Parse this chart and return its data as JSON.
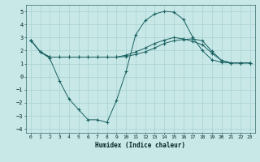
{
  "xlabel": "Humidex (Indice chaleur)",
  "bg_color": "#c8e8e8",
  "grid_color": "#a8d0d0",
  "line_color": "#1a6060",
  "xlim": [
    -0.5,
    23.5
  ],
  "ylim": [
    -4.3,
    5.5
  ],
  "xticks": [
    0,
    1,
    2,
    3,
    4,
    5,
    6,
    7,
    8,
    9,
    10,
    11,
    12,
    13,
    14,
    15,
    16,
    17,
    18,
    19,
    20,
    21,
    22,
    23
  ],
  "yticks": [
    -4,
    -3,
    -2,
    -1,
    0,
    1,
    2,
    3,
    4,
    5
  ],
  "line1_x": [
    0,
    1,
    2,
    3,
    4,
    5,
    6,
    7,
    8,
    9,
    10,
    11,
    12,
    13,
    14,
    15,
    16,
    17,
    18,
    19,
    20,
    21,
    22,
    23
  ],
  "line1_y": [
    2.8,
    1.9,
    1.5,
    1.5,
    1.5,
    1.5,
    1.5,
    1.5,
    1.5,
    1.5,
    1.55,
    1.7,
    1.9,
    2.2,
    2.55,
    2.75,
    2.85,
    2.9,
    2.75,
    1.95,
    1.25,
    1.05,
    1.05,
    1.05
  ],
  "line2_x": [
    0,
    1,
    2,
    3,
    4,
    5,
    6,
    7,
    8,
    9,
    10,
    11,
    12,
    13,
    14,
    15,
    16,
    17,
    18,
    19,
    20,
    21,
    22,
    23
  ],
  "line2_y": [
    2.8,
    1.9,
    1.5,
    1.5,
    1.5,
    1.5,
    1.5,
    1.5,
    1.5,
    1.5,
    1.65,
    1.9,
    2.2,
    2.55,
    2.8,
    3.0,
    2.9,
    2.7,
    2.45,
    1.8,
    1.25,
    1.05,
    1.05,
    1.05
  ],
  "line3_x": [
    0,
    1,
    2,
    3,
    4,
    5,
    6,
    7,
    8,
    9,
    10,
    11,
    12,
    13,
    14,
    15,
    16,
    17,
    18,
    19,
    20,
    21,
    22,
    23
  ],
  "line3_y": [
    2.8,
    1.9,
    1.4,
    -0.3,
    -1.7,
    -2.5,
    -3.3,
    -3.3,
    -3.5,
    -1.8,
    0.4,
    3.2,
    4.3,
    4.8,
    5.0,
    4.95,
    4.4,
    3.0,
    2.0,
    1.3,
    1.1,
    1.05,
    1.05,
    1.05
  ]
}
